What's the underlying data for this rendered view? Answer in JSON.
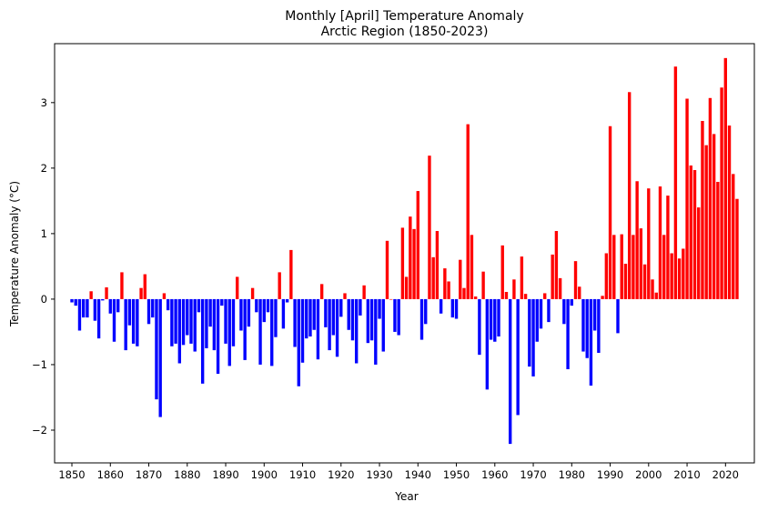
{
  "chart_data": {
    "type": "bar",
    "title": "Monthly [April] Temperature Anomaly",
    "subtitle": "Arctic Region (1850-2023)",
    "xlabel": "Year",
    "ylabel": "Temperature Anomaly (°C)",
    "xlim": [
      1845.5,
      2027.5
    ],
    "ylim": [
      -2.5,
      3.9
    ],
    "xticks": [
      1850,
      1860,
      1870,
      1880,
      1890,
      1900,
      1910,
      1920,
      1930,
      1940,
      1950,
      1960,
      1970,
      1980,
      1990,
      2000,
      2010,
      2020
    ],
    "yticks": [
      -2,
      -1,
      0,
      1,
      2,
      3
    ],
    "grid": false,
    "legend": "none",
    "colors": {
      "positive": "#ff0000",
      "negative": "#0000ff"
    },
    "x_start": 1850,
    "x_end": 2023,
    "values": [
      -0.05,
      -0.1,
      -0.48,
      -0.28,
      -0.28,
      0.12,
      -0.33,
      -0.6,
      -0.02,
      0.18,
      -0.22,
      -0.65,
      -0.2,
      0.41,
      -0.78,
      -0.4,
      -0.68,
      -0.72,
      0.17,
      0.38,
      -0.38,
      -0.28,
      -1.53,
      -1.8,
      0.09,
      -0.17,
      -0.72,
      -0.68,
      -0.98,
      -0.7,
      -0.55,
      -0.68,
      -0.8,
      -0.2,
      -1.29,
      -0.75,
      -0.42,
      -0.78,
      -1.14,
      -0.1,
      -0.68,
      -1.02,
      -0.72,
      0.34,
      -0.48,
      -0.93,
      -0.42,
      0.17,
      -0.2,
      -1.0,
      -0.35,
      -0.2,
      -1.02,
      -0.58,
      0.41,
      -0.45,
      -0.05,
      0.75,
      -0.73,
      -1.33,
      -0.97,
      -0.6,
      -0.57,
      -0.47,
      -0.92,
      0.23,
      -0.43,
      -0.78,
      -0.55,
      -0.88,
      -0.27,
      0.09,
      -0.47,
      -0.63,
      -0.98,
      -0.25,
      0.21,
      -0.67,
      -0.63,
      -1.0,
      -0.3,
      -0.8,
      0.89,
      0.0,
      -0.5,
      -0.55,
      1.09,
      0.34,
      1.26,
      1.07,
      1.65,
      -0.62,
      -0.38,
      2.19,
      0.64,
      1.04,
      -0.22,
      0.47,
      0.27,
      -0.28,
      -0.3,
      0.6,
      0.17,
      2.67,
      0.98,
      0.04,
      -0.85,
      0.42,
      -1.38,
      -0.62,
      -0.65,
      -0.57,
      0.82,
      0.11,
      -2.21,
      0.3,
      -1.77,
      0.65,
      0.08,
      -1.03,
      -1.18,
      -0.65,
      -0.45,
      0.09,
      -0.35,
      0.68,
      1.04,
      0.32,
      -0.38,
      -1.07,
      -0.1,
      0.58,
      0.19,
      -0.8,
      -0.9,
      -1.32,
      -0.48,
      -0.82,
      0.05,
      0.7,
      2.64,
      0.98,
      -0.52,
      0.99,
      0.54,
      3.16,
      0.98,
      1.8,
      1.08,
      0.53,
      1.69,
      0.3,
      0.1,
      1.72,
      0.98,
      1.58,
      0.7,
      3.55,
      0.62,
      0.77,
      3.06,
      2.04,
      1.97,
      1.4,
      2.72,
      2.35,
      3.07,
      2.52,
      1.79,
      3.23,
      3.68,
      2.65,
      1.91,
      1.53
    ]
  }
}
